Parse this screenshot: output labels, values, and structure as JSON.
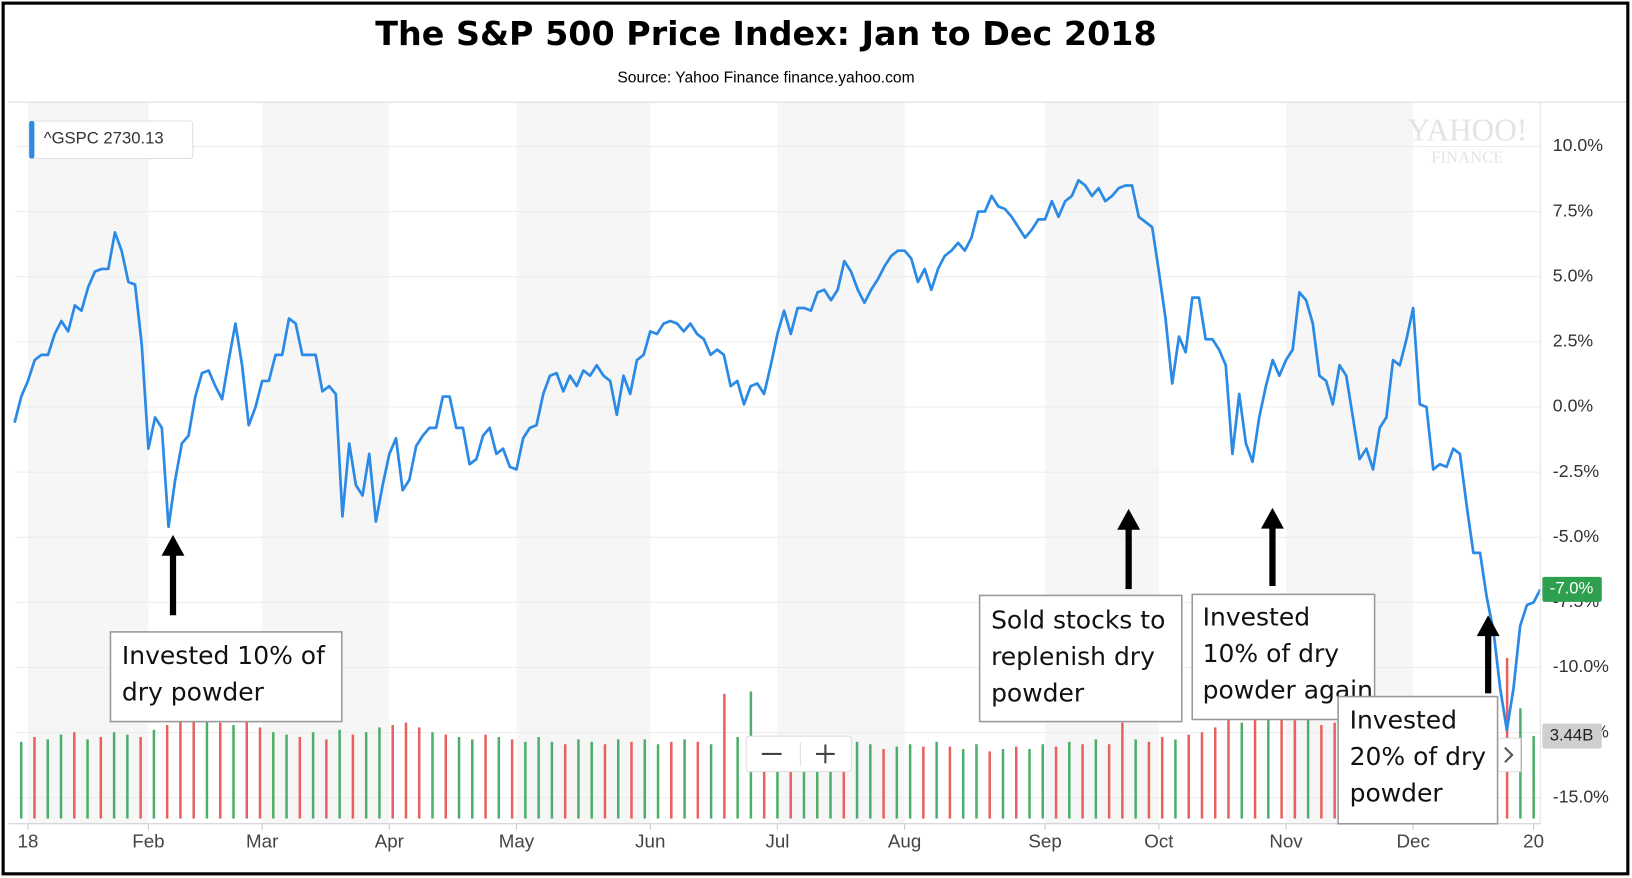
{
  "chart_data": {
    "type": "line",
    "title": "The S&P 500 Price Index: Jan to Dec 2018",
    "subtitle": "Source: Yahoo Finance finance.yahoo.com",
    "watermark": [
      "YAHOO!",
      "FINANCE"
    ],
    "series": [
      {
        "name": "^GSPC",
        "last_price": 2730.13,
        "color": "#2a8ae6",
        "values": [
          -0.6,
          0.4,
          1.0,
          1.8,
          2.0,
          2.0,
          2.8,
          3.3,
          2.9,
          3.9,
          3.7,
          4.6,
          5.2,
          5.3,
          5.3,
          6.7,
          6.0,
          4.8,
          4.7,
          2.4,
          -1.6,
          -0.4,
          -0.8,
          -4.6,
          -2.8,
          -1.4,
          -1.1,
          0.4,
          1.3,
          1.4,
          0.8,
          0.3,
          1.8,
          3.2,
          1.6,
          -0.7,
          0.0,
          1.0,
          1.0,
          2.0,
          2.0,
          3.4,
          3.2,
          2.0,
          2.0,
          2.0,
          0.6,
          0.8,
          0.5,
          -4.2,
          -1.4,
          -3.0,
          -3.4,
          -1.8,
          -4.4,
          -3.0,
          -1.8,
          -1.2,
          -3.2,
          -2.8,
          -1.5,
          -1.1,
          -0.8,
          -0.8,
          0.4,
          0.4,
          -0.8,
          -0.8,
          -2.2,
          -2.0,
          -1.1,
          -0.8,
          -1.8,
          -1.6,
          -2.3,
          -2.4,
          -1.2,
          -0.8,
          -0.7,
          0.5,
          1.2,
          1.3,
          0.6,
          1.2,
          0.8,
          1.4,
          1.2,
          1.6,
          1.2,
          1.0,
          -0.3,
          1.2,
          0.5,
          1.8,
          2.0,
          2.9,
          2.8,
          3.2,
          3.3,
          3.2,
          2.9,
          3.2,
          2.8,
          2.6,
          2.0,
          2.2,
          2.0,
          0.8,
          1.0,
          0.1,
          0.8,
          0.9,
          0.5,
          1.6,
          2.8,
          3.7,
          2.8,
          3.8,
          3.8,
          3.7,
          4.4,
          4.5,
          4.1,
          4.5,
          5.6,
          5.2,
          4.5,
          4.0,
          4.5,
          4.9,
          5.4,
          5.8,
          6.0,
          6.0,
          5.7,
          4.8,
          5.3,
          4.5,
          5.3,
          5.8,
          6.0,
          6.3,
          6.0,
          6.5,
          7.5,
          7.5,
          8.1,
          7.7,
          7.6,
          7.3,
          6.9,
          6.5,
          6.8,
          7.2,
          7.2,
          7.9,
          7.3,
          7.9,
          8.1,
          8.7,
          8.5,
          8.1,
          8.4,
          7.9,
          8.1,
          8.4,
          8.5,
          8.5,
          7.3,
          7.1,
          6.9,
          5.2,
          3.4,
          0.9,
          2.7,
          2.1,
          4.2,
          4.2,
          2.6,
          2.6,
          2.2,
          1.6,
          -1.8,
          0.5,
          -1.4,
          -2.1,
          -0.4,
          0.8,
          1.8,
          1.2,
          1.8,
          2.2,
          4.4,
          4.1,
          3.2,
          1.2,
          1.0,
          0.1,
          1.6,
          1.2,
          -0.4,
          -2.0,
          -1.6,
          -2.4,
          -0.8,
          -0.4,
          1.8,
          1.6,
          2.6,
          3.8,
          0.1,
          0.0,
          -2.4,
          -2.2,
          -2.3,
          -1.6,
          -1.8,
          -3.8,
          -5.6,
          -5.6,
          -7.3,
          -8.6,
          -10.8,
          -12.4,
          -10.8,
          -8.4,
          -7.6,
          -7.5,
          -7.0
        ]
      }
    ],
    "price_badge": {
      "value": -7.0,
      "label": "-7.0%",
      "color": "#2e9e4f"
    },
    "xlim": [
      0,
      228
    ],
    "xticks": [
      {
        "value": 2,
        "label": "18"
      },
      {
        "value": 20,
        "label": "Feb"
      },
      {
        "value": 37,
        "label": "Mar"
      },
      {
        "value": 56,
        "label": "Apr"
      },
      {
        "value": 75,
        "label": "May"
      },
      {
        "value": 95,
        "label": "Jun"
      },
      {
        "value": 114,
        "label": "Jul"
      },
      {
        "value": 133,
        "label": "Aug"
      },
      {
        "value": 154,
        "label": "Sep"
      },
      {
        "value": 171,
        "label": "Oct"
      },
      {
        "value": 190,
        "label": "Nov"
      },
      {
        "value": 209,
        "label": "Dec"
      },
      {
        "value": 227,
        "label": "20"
      }
    ],
    "ylim": [
      -16,
      11.7
    ],
    "yticks": [
      {
        "value": 10,
        "label": "10.0%"
      },
      {
        "value": 7.5,
        "label": "7.5%"
      },
      {
        "value": 5,
        "label": "5.0%"
      },
      {
        "value": 2.5,
        "label": "2.5%"
      },
      {
        "value": 0,
        "label": "0.0%"
      },
      {
        "value": -2.5,
        "label": "-2.5%"
      },
      {
        "value": -5,
        "label": "-5.0%"
      },
      {
        "value": -7.5,
        "label": "-7.5%"
      },
      {
        "value": -10,
        "label": "-10.0%"
      },
      {
        "value": -12.5,
        "label": "-12.5%"
      },
      {
        "value": -15,
        "label": "-15.0%"
      }
    ],
    "grid": true,
    "volume": {
      "ylim": [
        0,
        12
      ],
      "values": [
        3.2,
        3.4,
        3.3,
        3.5,
        3.6,
        3.3,
        3.4,
        3.6,
        3.5,
        3.4,
        3.7,
        3.9,
        4.2,
        4.4,
        4.3,
        4.0,
        3.9,
        4.1,
        3.8,
        3.6,
        3.5,
        3.4,
        3.6,
        3.3,
        3.7,
        3.5,
        3.6,
        3.8,
        3.9,
        4.0,
        3.8,
        3.6,
        3.5,
        3.4,
        3.3,
        3.5,
        3.4,
        3.3,
        3.2,
        3.4,
        3.2,
        3.1,
        3.3,
        3.2,
        3.1,
        3.3,
        3.2,
        3.3,
        3.1,
        3.2,
        3.3,
        3.2,
        3.1,
        5.2,
        3.4,
        5.3,
        3.3,
        3.1,
        3.0,
        3.2,
        3.0,
        3.1,
        3.0,
        3.2,
        3.1,
        2.9,
        3.0,
        3.1,
        3.0,
        3.2,
        3.0,
        2.9,
        3.1,
        2.8,
        2.9,
        3.0,
        2.9,
        3.1,
        3.0,
        3.2,
        3.1,
        3.3,
        3.1,
        4.0,
        3.3,
        3.2,
        3.4,
        3.3,
        3.5,
        3.6,
        3.8,
        4.3,
        4.0,
        4.5,
        4.2,
        4.4,
        4.1,
        4.3,
        3.9,
        4.0,
        3.9,
        3.6,
        3.8,
        3.5,
        3.7,
        3.4,
        3.6,
        3.8,
        4.0,
        3.7,
        4.2,
        4.4,
        6.7,
        4.6,
        3.44
      ],
      "colors": [
        "#4cae6a",
        "#e8615d",
        "#4cae6a",
        "#4cae6a",
        "#e8615d",
        "#4cae6a",
        "#e8615d",
        "#4cae6a",
        "#4cae6a",
        "#e8615d",
        "#4cae6a",
        "#e8615d",
        "#e8615d",
        "#e8615d",
        "#4cae6a",
        "#e8615d",
        "#4cae6a",
        "#e8615d",
        "#e8615d",
        "#4cae6a",
        "#4cae6a",
        "#e8615d",
        "#4cae6a",
        "#e8615d",
        "#4cae6a",
        "#e8615d",
        "#4cae6a",
        "#4cae6a",
        "#e8615d",
        "#e8615d",
        "#e8615d",
        "#4cae6a",
        "#e8615d",
        "#4cae6a",
        "#4cae6a",
        "#e8615d",
        "#4cae6a",
        "#e8615d",
        "#4cae6a",
        "#4cae6a",
        "#4cae6a",
        "#e8615d",
        "#4cae6a",
        "#4cae6a",
        "#e8615d",
        "#4cae6a",
        "#e8615d",
        "#4cae6a",
        "#4cae6a",
        "#e8615d",
        "#4cae6a",
        "#e8615d",
        "#4cae6a",
        "#e8615d",
        "#4cae6a",
        "#4cae6a",
        "#e8615d",
        "#4cae6a",
        "#e8615d",
        "#4cae6a",
        "#4cae6a",
        "#4cae6a",
        "#e8615d",
        "#4cae6a",
        "#4cae6a",
        "#e8615d",
        "#4cae6a",
        "#4cae6a",
        "#e8615d",
        "#4cae6a",
        "#e8615d",
        "#4cae6a",
        "#4cae6a",
        "#e8615d",
        "#4cae6a",
        "#e8615d",
        "#4cae6a",
        "#4cae6a",
        "#e8615d",
        "#4cae6a",
        "#e8615d",
        "#4cae6a",
        "#e8615d",
        "#e8615d",
        "#4cae6a",
        "#e8615d",
        "#e8615d",
        "#4cae6a",
        "#e8615d",
        "#e8615d",
        "#e8615d",
        "#e8615d",
        "#4cae6a",
        "#e8615d",
        "#4cae6a",
        "#e8615d",
        "#e8615d",
        "#4cae6a",
        "#e8615d",
        "#e8615d",
        "#4cae6a",
        "#e8615d",
        "#4cae6a",
        "#e8615d",
        "#e8615d",
        "#4cae6a",
        "#e8615d",
        "#4cae6a",
        "#e8615d",
        "#e8615d",
        "#e8615d",
        "#e8615d",
        "#e8615d",
        "#4cae6a",
        "#4cae6a"
      ],
      "badge": {
        "value": 3.44,
        "label": "3.44B"
      }
    },
    "annotations": [
      {
        "lines": [
          "Invested 10% of",
          "dry powder"
        ]
      },
      {
        "lines": [
          "Sold stocks to",
          "replenish dry",
          "powder"
        ]
      },
      {
        "lines": [
          "Invested",
          "10% of dry",
          "powder again"
        ]
      },
      {
        "lines": [
          "Invested",
          "20% of dry",
          "powder"
        ]
      }
    ]
  }
}
